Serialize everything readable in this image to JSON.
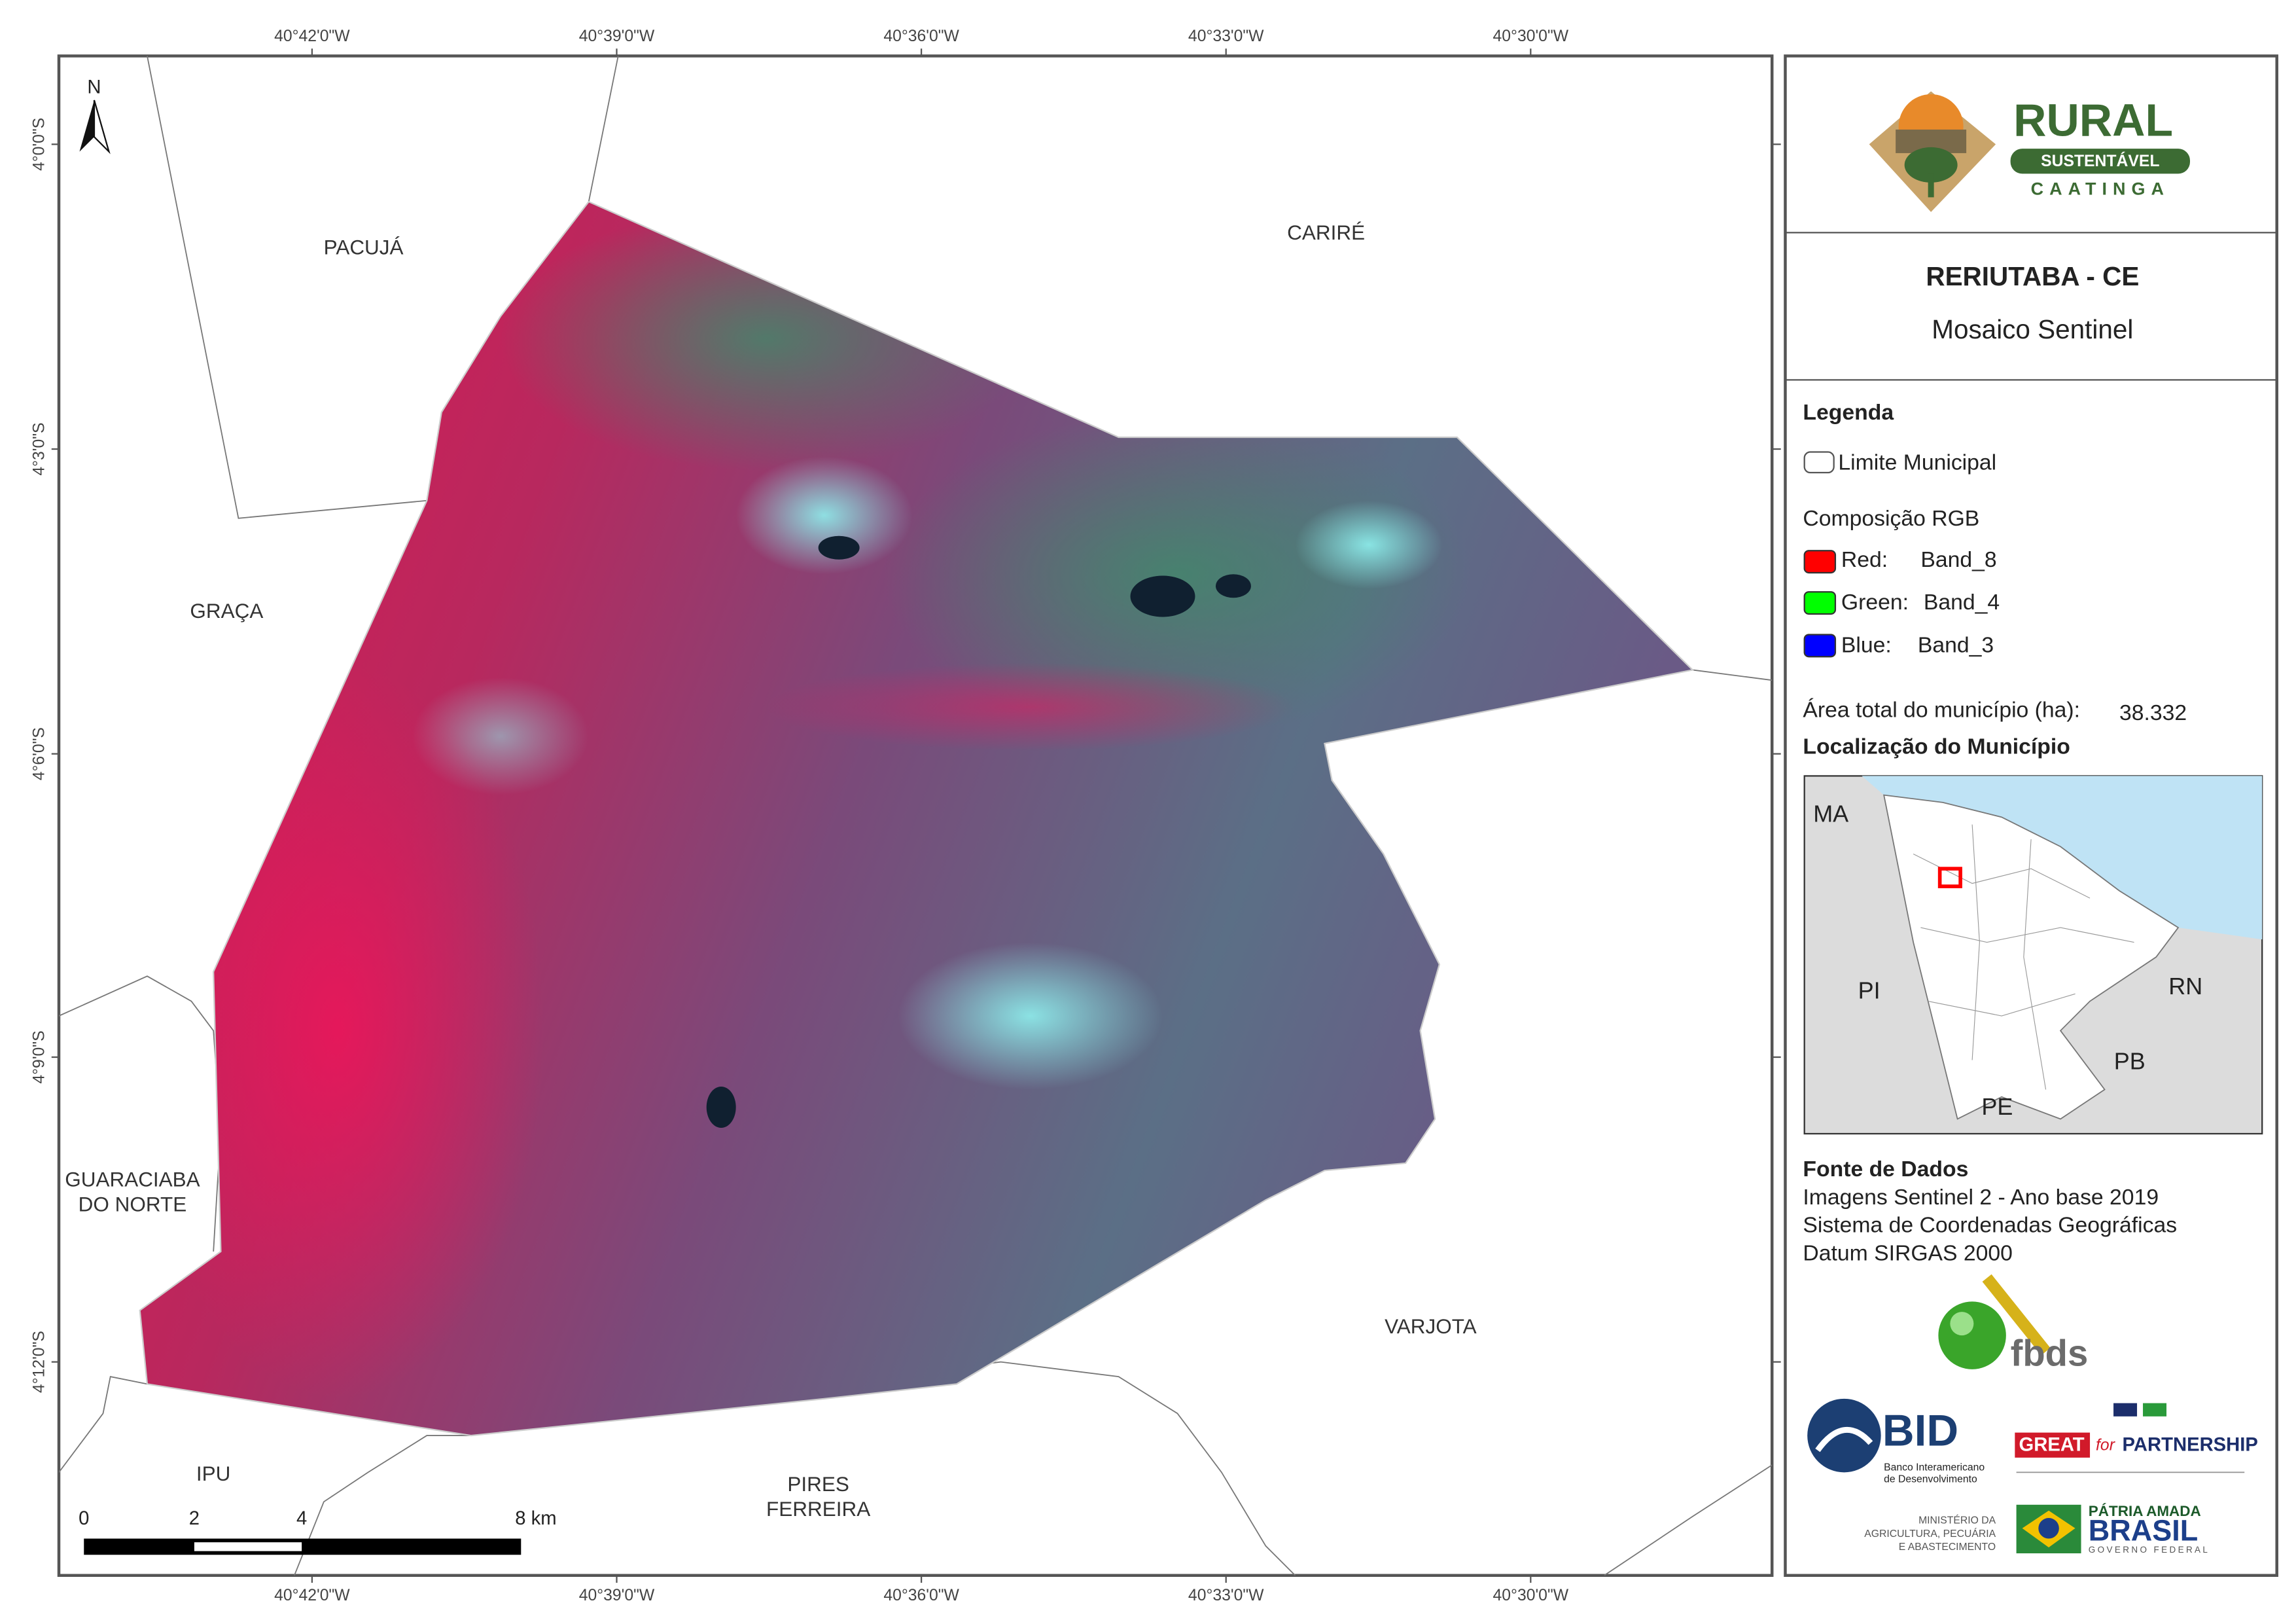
{
  "map": {
    "longitude_labels": [
      "40°42'0\"W",
      "40°39'0\"W",
      "40°36'0\"W",
      "40°33'0\"W",
      "40°30'0\"W"
    ],
    "latitude_labels": [
      "4°0'0\"S",
      "4°3'0\"S",
      "4°6'0\"S",
      "4°9'0\"S",
      "4°12'0\"S"
    ],
    "north": "N",
    "neighbors": [
      [
        "PACUJÁ"
      ],
      [
        "CARIRÉ"
      ],
      [
        "GRAÇA"
      ],
      [
        "GUARACIABA",
        "DO NORTE"
      ],
      [
        "VARJOTA"
      ],
      [
        "IPU"
      ],
      [
        "PIRES",
        "FERREIRA"
      ]
    ],
    "scale_bar": [
      "0",
      "2",
      "4",
      "8 km"
    ]
  },
  "panel": {
    "logo": {
      "line1": "RURAL",
      "line2": "SUSTENTÁVEL",
      "line3": "CAATINGA"
    },
    "title": "RERIUTABA - CE",
    "subtitle": "Mosaico Sentinel",
    "legend": {
      "heading": "Legenda",
      "boundary": "Limite Municipal",
      "composition": "Composição RGB",
      "bands": [
        [
          "Red:",
          "Band_8"
        ],
        [
          "Green:",
          "Band_4"
        ],
        [
          "Blue:",
          "Band_3"
        ]
      ],
      "area_label": "Área total do município (ha):",
      "area_value": "38.332"
    },
    "location": {
      "heading": "Localização do Município",
      "states": [
        "MA",
        "PI",
        "RN",
        "PB",
        "PE"
      ]
    },
    "sources": {
      "heading": "Fonte de Dados",
      "lines": [
        "Imagens Sentinel 2 - Ano base 2019",
        "Sistema de Coordenadas Geográficas",
        "Datum SIRGAS 2000"
      ]
    },
    "partners": {
      "fbds": "fbds",
      "bid": "BID",
      "bid_name": [
        "Banco Interamericano",
        "de Desenvolvimento"
      ],
      "great": [
        "GREAT",
        "for",
        "PARTNERSHIP"
      ],
      "ministry": [
        "MINISTÉRIO DA",
        "AGRICULTURA, PECUÁRIA",
        "E ABASTECIMENTO"
      ],
      "brasil": [
        "PÁTRIA AMADA",
        "BRASIL",
        "GOVERNO FEDERAL"
      ]
    }
  }
}
